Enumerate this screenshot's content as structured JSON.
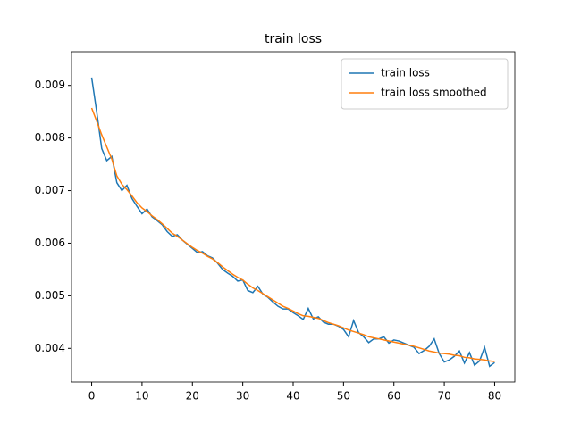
{
  "chart_data": {
    "type": "line",
    "title": "train loss",
    "x": [
      0,
      1,
      2,
      3,
      4,
      5,
      6,
      7,
      8,
      9,
      10,
      11,
      12,
      13,
      14,
      15,
      16,
      17,
      18,
      19,
      20,
      21,
      22,
      23,
      24,
      25,
      26,
      27,
      28,
      29,
      30,
      31,
      32,
      33,
      34,
      35,
      36,
      37,
      38,
      39,
      40,
      41,
      42,
      43,
      44,
      45,
      46,
      47,
      48,
      49,
      50,
      51,
      52,
      53,
      54,
      55,
      56,
      57,
      58,
      59,
      60,
      61,
      62,
      63,
      64,
      65,
      66,
      67,
      68,
      69,
      70,
      71,
      72,
      73,
      74,
      75,
      76,
      77,
      78,
      79,
      80
    ],
    "series": [
      {
        "name": "train loss",
        "color": "#1f77b4",
        "values": [
          0.00915,
          0.0085,
          0.0078,
          0.00757,
          0.00765,
          0.00715,
          0.007,
          0.0071,
          0.00685,
          0.0067,
          0.00656,
          0.00665,
          0.0065,
          0.00643,
          0.00635,
          0.00622,
          0.00613,
          0.00616,
          0.00606,
          0.00598,
          0.0059,
          0.00582,
          0.00584,
          0.00576,
          0.00572,
          0.00562,
          0.0055,
          0.00543,
          0.00537,
          0.00528,
          0.0053,
          0.0051,
          0.00506,
          0.00518,
          0.00503,
          0.00497,
          0.00488,
          0.0048,
          0.00475,
          0.00475,
          0.00468,
          0.00462,
          0.00455,
          0.00476,
          0.00456,
          0.0046,
          0.0045,
          0.00446,
          0.00446,
          0.00442,
          0.00436,
          0.00422,
          0.00453,
          0.0043,
          0.00422,
          0.00411,
          0.00418,
          0.00418,
          0.00422,
          0.0041,
          0.00416,
          0.00414,
          0.0041,
          0.00406,
          0.00402,
          0.0039,
          0.00396,
          0.00404,
          0.00418,
          0.0039,
          0.00374,
          0.00378,
          0.00385,
          0.00395,
          0.00372,
          0.00392,
          0.00368,
          0.00376,
          0.00402,
          0.00366,
          0.00373
        ]
      },
      {
        "name": "train loss smoothed",
        "color": "#ff7f0e",
        "values": [
          0.00857,
          0.00832,
          0.00806,
          0.00783,
          0.0076,
          0.00728,
          0.00712,
          0.00702,
          0.0069,
          0.00677,
          0.00667,
          0.0066,
          0.00652,
          0.00645,
          0.00637,
          0.00628,
          0.00619,
          0.00613,
          0.00606,
          0.00599,
          0.00592,
          0.00586,
          0.00581,
          0.00575,
          0.0057,
          0.00563,
          0.00555,
          0.00548,
          0.00541,
          0.00535,
          0.0053,
          0.00522,
          0.00515,
          0.0051,
          0.00504,
          0.00498,
          0.00492,
          0.00486,
          0.0048,
          0.00476,
          0.00471,
          0.00466,
          0.00462,
          0.00461,
          0.00459,
          0.00457,
          0.00453,
          0.00449,
          0.00446,
          0.00443,
          0.00439,
          0.00435,
          0.00432,
          0.00429,
          0.00426,
          0.00422,
          0.0042,
          0.00418,
          0.00416,
          0.00414,
          0.00412,
          0.0041,
          0.00408,
          0.00406,
          0.00404,
          0.00401,
          0.00398,
          0.00395,
          0.00393,
          0.00391,
          0.0039,
          0.00389,
          0.00387,
          0.00386,
          0.00383,
          0.00382,
          0.0038,
          0.00379,
          0.00378,
          0.00376,
          0.00375
        ]
      }
    ],
    "xlim": [
      -4,
      84
    ],
    "xticks": [
      0,
      10,
      20,
      30,
      40,
      50,
      60,
      70,
      80
    ],
    "ylim": [
      0.00336,
      0.00964
    ],
    "yticks": [
      0.004,
      0.005,
      0.006,
      0.007,
      0.008,
      0.009
    ],
    "legend": "upper right"
  }
}
